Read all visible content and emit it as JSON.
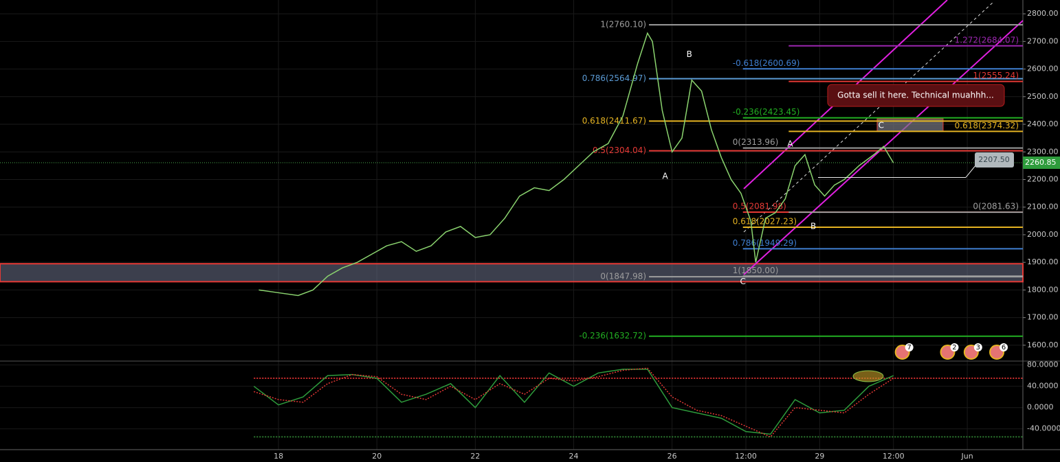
{
  "chart_data": [
    {
      "type": "line",
      "x": [
        17.6,
        18.0,
        18.4,
        18.7,
        19.0,
        19.3,
        19.6,
        19.9,
        20.2,
        20.5,
        20.8,
        21.1,
        21.4,
        21.7,
        22.0,
        22.3,
        22.6,
        22.9,
        23.2,
        23.5,
        23.8,
        24.1,
        24.4,
        24.7,
        25.0,
        25.3,
        25.5,
        25.6,
        25.8,
        26.0,
        26.2,
        26.4,
        26.6,
        26.8,
        27.0,
        27.2,
        27.4,
        27.6,
        27.7,
        27.9,
        28.1,
        28.3,
        28.5,
        28.7,
        28.9,
        29.1,
        29.3,
        29.5,
        29.8,
        30.1,
        30.3,
        30.5
      ],
      "values": [
        1800,
        1790,
        1780,
        1800,
        1850,
        1880,
        1900,
        1930,
        1960,
        1975,
        1940,
        1960,
        2010,
        2030,
        1990,
        2000,
        2060,
        2140,
        2170,
        2160,
        2200,
        2250,
        2300,
        2330,
        2430,
        2620,
        2730,
        2700,
        2450,
        2300,
        2350,
        2560,
        2520,
        2380,
        2280,
        2200,
        2150,
        2050,
        1900,
        2060,
        2080,
        2130,
        2250,
        2290,
        2180,
        2140,
        2180,
        2200,
        2250,
        2290,
        2320,
        2260
      ],
      "color": "#8bd46f",
      "xlim": [
        12.34,
        33.13
      ],
      "ylim": [
        1545,
        2850
      ],
      "xticks": [
        18,
        20,
        22,
        24,
        26,
        {
          "value": 27.5,
          "label": "12:00"
        },
        29,
        {
          "value": 30.5,
          "label": "12:00"
        },
        {
          "value": 32,
          "label": "Jun"
        }
      ],
      "yticks": [
        {
          "value": 1600,
          "label": "1600.00"
        },
        {
          "value": 1700,
          "label": "1700.00"
        },
        {
          "value": 1800,
          "label": "1800.00"
        },
        {
          "value": 1900,
          "label": "1900.00"
        },
        {
          "value": 2000,
          "label": "2000.00"
        },
        {
          "value": 2100,
          "label": "2100.00"
        },
        {
          "value": 2200,
          "label": "2200.00"
        },
        {
          "value": 2300,
          "label": "2300.00"
        },
        {
          "value": 2400,
          "label": "2400.00"
        },
        {
          "value": 2500,
          "label": "2500.00"
        },
        {
          "value": 2600,
          "label": "2600.00"
        },
        {
          "value": 2700,
          "label": "2700.00"
        },
        {
          "value": 2800,
          "label": "2800.00"
        }
      ],
      "grid": true,
      "last_price": 2260.85,
      "price_marker": {
        "value": 2207.5,
        "label": "2207.50"
      },
      "zone": [
        1830,
        1895
      ],
      "fib_levels": [
        {
          "label": "1(2760.10)",
          "value": 2760.1,
          "color": "#9e9e9e",
          "from": 25.53,
          "side": "left"
        },
        {
          "label": "0.786(2564.97)",
          "value": 2564.97,
          "color": "#5b9bd5",
          "from": 25.53,
          "side": "left"
        },
        {
          "label": "0.618(2411.67)",
          "value": 2411.67,
          "color": "#e6b422",
          "from": 25.53,
          "side": "left"
        },
        {
          "label": "0.5(2304.04)",
          "value": 2304.04,
          "color": "#e53935",
          "from": 25.53,
          "side": "left"
        },
        {
          "label": "0(1847.98)",
          "value": 1847.98,
          "color": "#9e9e9e",
          "from": 25.53,
          "side": "left"
        },
        {
          "label": "-0.236(1632.72)",
          "value": 1632.72,
          "color": "#22b022",
          "from": 25.53,
          "side": "left"
        },
        {
          "label": "-0.618(2600.69)",
          "value": 2600.69,
          "color": "#3f7fd1",
          "from": 27.44,
          "side": "start"
        },
        {
          "label": "-0.236(2423.45)",
          "value": 2423.45,
          "color": "#22b022",
          "from": 27.44,
          "side": "start"
        },
        {
          "label": "0(2313.96)",
          "value": 2313.96,
          "color": "#9e9e9e",
          "from": 27.44,
          "side": "start"
        },
        {
          "label": "0.5(2081.98)",
          "value": 2081.98,
          "color": "#e53935",
          "from": 27.44,
          "side": "start"
        },
        {
          "label": "0.618(2027.23)",
          "value": 2027.23,
          "color": "#e6b422",
          "from": 27.44,
          "side": "start"
        },
        {
          "label": "0.786(1949.29)",
          "value": 1949.29,
          "color": "#3f7fd1",
          "from": 27.44,
          "side": "start"
        },
        {
          "label": "1(1850.00)",
          "value": 1850.0,
          "color": "#9e9e9e",
          "from": 27.44,
          "side": "start"
        },
        {
          "label": "1.272(2684.07)",
          "value": 2684.07,
          "color": "#9c27b0",
          "from": 28.37,
          "side": "end"
        },
        {
          "label": "1(2555.24)",
          "value": 2555.24,
          "color": "#e53935",
          "from": 28.37,
          "side": "end"
        },
        {
          "label": "0.618(2374.32)",
          "value": 2374.32,
          "color": "#e6b422",
          "from": 28.37,
          "side": "end"
        },
        {
          "label": "0(2081.63)",
          "value": 2081.63,
          "color": "#9e9e9e",
          "from": 28.37,
          "side": "end"
        }
      ],
      "waves": [
        {
          "text": "A",
          "x": 25.86,
          "y": 2211
        },
        {
          "text": "B",
          "x": 26.35,
          "y": 2652
        },
        {
          "text": "C",
          "x": 27.44,
          "y": 1830
        },
        {
          "text": "A",
          "x": 28.4,
          "y": 2328
        },
        {
          "text": "B",
          "x": 28.87,
          "y": 2030
        },
        {
          "text": "C",
          "x": 30.25,
          "y": 2395
        }
      ],
      "note": "Gotta sell it here. Technical muahhh...",
      "events": [
        {
          "x": 30.68,
          "count": 7
        },
        {
          "x": 31.6,
          "count": 2
        },
        {
          "x": 32.08,
          "count": 3
        },
        {
          "x": 32.6,
          "count": 6
        }
      ]
    },
    {
      "type": "line",
      "x": [
        17.5,
        18,
        18.5,
        19,
        19.5,
        20,
        20.5,
        21,
        21.5,
        22,
        22.5,
        23,
        23.5,
        24,
        24.5,
        25,
        25.5,
        26,
        26.5,
        27,
        27.5,
        28,
        28.5,
        29,
        29.5,
        30,
        30.5
      ],
      "series": [
        {
          "color": "#2e9c3c",
          "values": [
            40,
            5,
            20,
            60,
            62,
            55,
            10,
            25,
            45,
            0,
            60,
            10,
            65,
            40,
            65,
            72,
            72,
            0,
            -10,
            -20,
            -45,
            -50,
            15,
            -10,
            -5,
            40,
            60
          ]
        },
        {
          "color": "#e53935",
          "values": [
            30,
            15,
            10,
            45,
            62,
            58,
            25,
            15,
            40,
            15,
            45,
            25,
            55,
            50,
            58,
            70,
            74,
            20,
            -5,
            -15,
            -35,
            -55,
            0,
            -5,
            -10,
            25,
            55
          ]
        }
      ],
      "ylim": [
        -79,
        86
      ],
      "yticks": [
        {
          "value": -40,
          "label": "-40.0000"
        },
        {
          "value": 0,
          "label": "0.0000"
        },
        {
          "value": 40,
          "label": "40.0000"
        },
        {
          "value": 80,
          "label": "80.0000"
        }
      ],
      "bands": [
        {
          "value": 55,
          "color": "#d32f2f"
        },
        {
          "value": -55,
          "color": "#2e7d32"
        }
      ]
    }
  ]
}
